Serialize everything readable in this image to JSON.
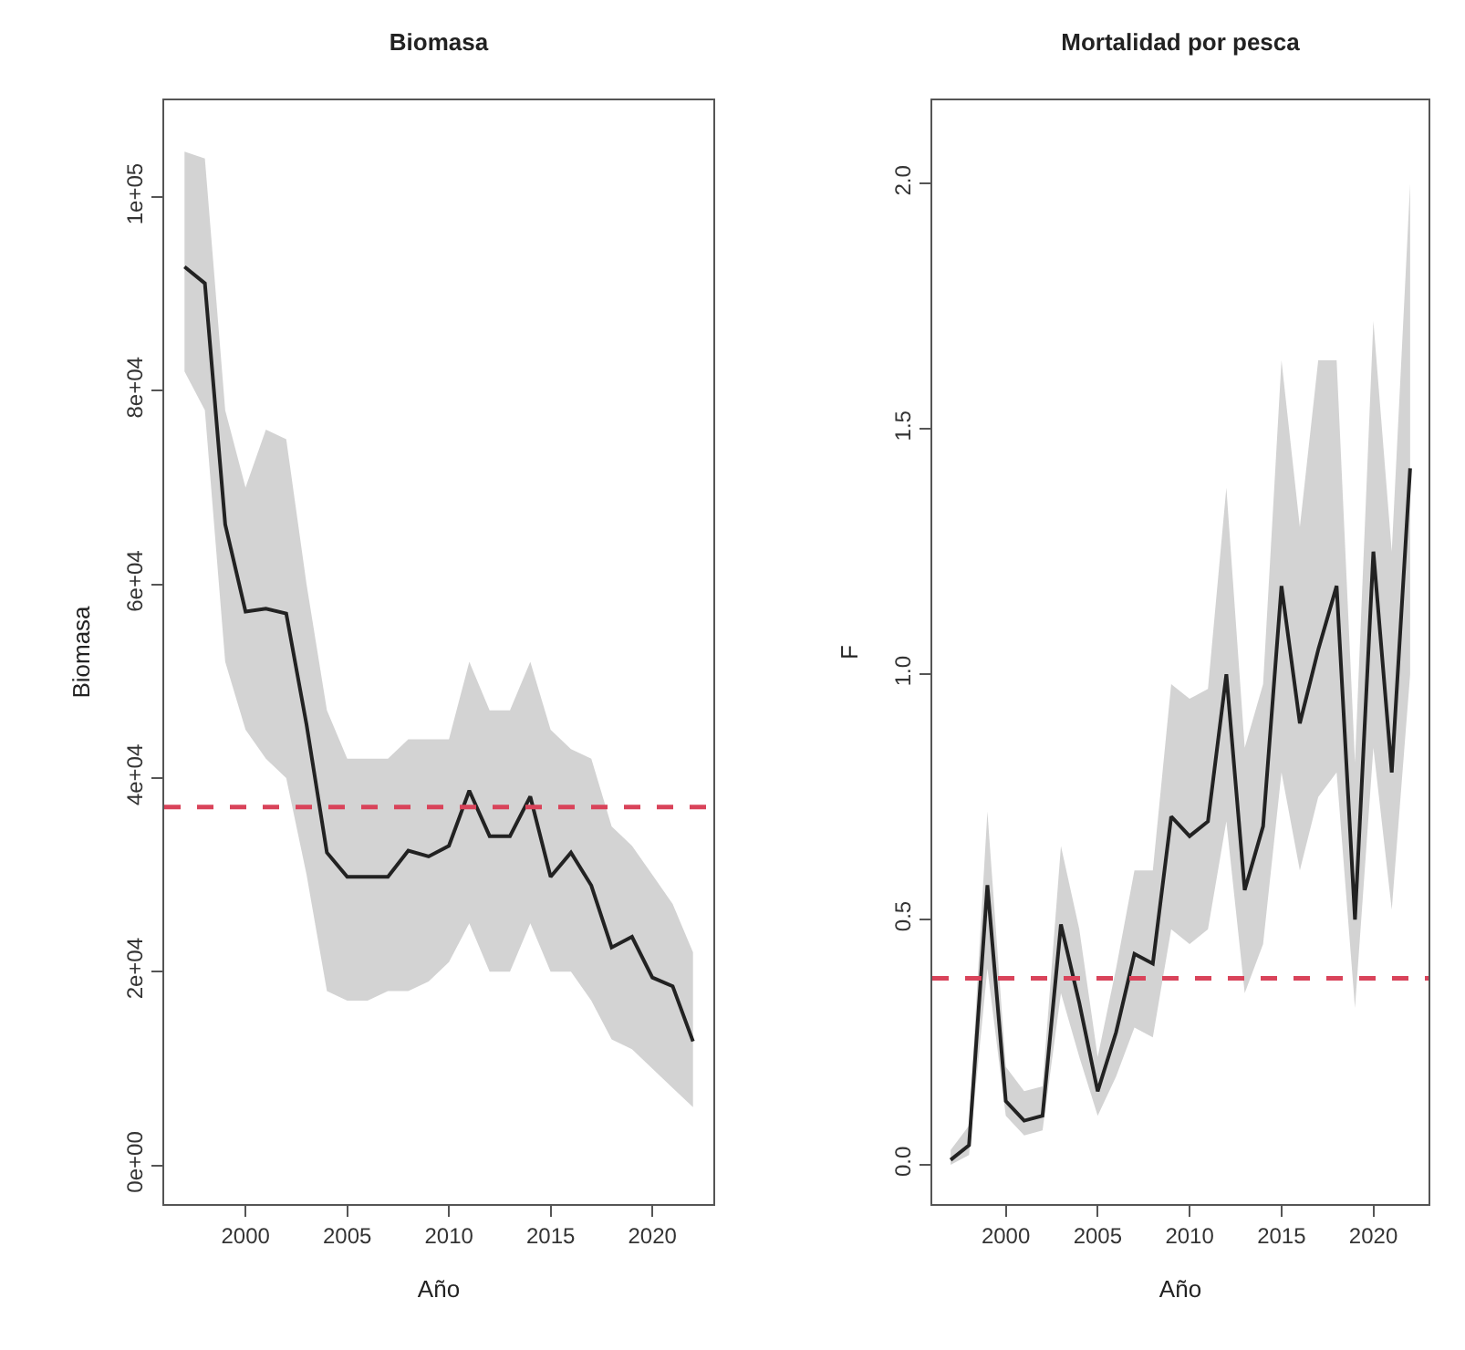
{
  "chart_data": [
    {
      "type": "line",
      "title": "Biomasa",
      "xlabel": "Año",
      "ylabel": "Biomasa",
      "x": [
        1997,
        1998,
        1999,
        2000,
        2001,
        2002,
        2003,
        2004,
        2005,
        2006,
        2007,
        2008,
        2009,
        2010,
        2011,
        2012,
        2013,
        2014,
        2015,
        2016,
        2017,
        2018,
        2019,
        2020,
        2021,
        2022
      ],
      "series": [
        {
          "color": "#222222",
          "values": [
            92800,
            91100,
            66200,
            57200,
            57500,
            57000,
            45500,
            32300,
            29800,
            29800,
            29800,
            32500,
            31900,
            33000,
            38700,
            34000,
            34000,
            38100,
            29800,
            32300,
            28900,
            22500,
            23600,
            19400,
            18500,
            12800
          ],
          "upper": [
            104700,
            104000,
            78000,
            70000,
            76000,
            75000,
            60000,
            47000,
            42000,
            42000,
            42000,
            44000,
            44000,
            44000,
            52000,
            47000,
            47000,
            52000,
            45000,
            43000,
            42000,
            35000,
            33000,
            30000,
            27000,
            22000
          ],
          "lower": [
            82000,
            78000,
            52000,
            45000,
            42000,
            40000,
            30000,
            18000,
            17000,
            17000,
            18000,
            18000,
            19000,
            21000,
            25000,
            20000,
            20000,
            25000,
            20000,
            20000,
            17000,
            13000,
            12000,
            10000,
            8000,
            6000
          ]
        }
      ],
      "ref_lines": [
        {
          "axis": "y",
          "value": 37000,
          "color": "#d9435a",
          "line_style": "dashed"
        }
      ],
      "xlim": [
        1996,
        2023
      ],
      "xticks": [
        2000,
        2005,
        2010,
        2015,
        2020
      ],
      "ylim": [
        -4000,
        110000
      ],
      "yticks": [
        {
          "value": 0,
          "label": "0e+00"
        },
        {
          "value": 20000,
          "label": "2e+04"
        },
        {
          "value": 40000,
          "label": "4e+04"
        },
        {
          "value": 60000,
          "label": "6e+04"
        },
        {
          "value": 80000,
          "label": "8e+04"
        },
        {
          "value": 100000,
          "label": "1e+05"
        }
      ],
      "grid": false,
      "line_style": "solid",
      "marker": "none"
    },
    {
      "type": "line",
      "title": "Mortalidad por pesca",
      "xlabel": "Año",
      "ylabel": "F",
      "x": [
        1997,
        1998,
        1999,
        2000,
        2001,
        2002,
        2003,
        2004,
        2005,
        2006,
        2007,
        2008,
        2009,
        2010,
        2011,
        2012,
        2013,
        2014,
        2015,
        2016,
        2017,
        2018,
        2019,
        2020,
        2021,
        2022
      ],
      "series": [
        {
          "color": "#222222",
          "values": [
            0.01,
            0.04,
            0.57,
            0.13,
            0.09,
            0.1,
            0.49,
            0.33,
            0.15,
            0.27,
            0.43,
            0.41,
            0.71,
            0.67,
            0.7,
            1.0,
            0.56,
            0.69,
            1.18,
            0.9,
            1.05,
            1.18,
            0.5,
            1.25,
            0.8,
            1.42
          ],
          "upper": [
            0.03,
            0.08,
            0.72,
            0.2,
            0.15,
            0.16,
            0.65,
            0.48,
            0.22,
            0.4,
            0.6,
            0.6,
            0.98,
            0.95,
            0.97,
            1.38,
            0.85,
            0.98,
            1.64,
            1.3,
            1.64,
            1.64,
            0.82,
            1.72,
            1.25,
            2.0
          ],
          "lower": [
            0,
            0.02,
            0.4,
            0.1,
            0.06,
            0.07,
            0.35,
            0.22,
            0.1,
            0.18,
            0.28,
            0.26,
            0.48,
            0.45,
            0.48,
            0.7,
            0.35,
            0.45,
            0.8,
            0.6,
            0.75,
            0.8,
            0.32,
            0.85,
            0.52,
            1.0
          ]
        }
      ],
      "ref_lines": [
        {
          "axis": "y",
          "value": 0.38,
          "color": "#d9435a",
          "line_style": "dashed"
        }
      ],
      "xlim": [
        1996,
        2023
      ],
      "xticks": [
        2000,
        2005,
        2010,
        2015,
        2020
      ],
      "ylim": [
        -0.08,
        2.17
      ],
      "yticks": [
        {
          "value": 0,
          "label": "0.0"
        },
        {
          "value": 0.5,
          "label": "0.5"
        },
        {
          "value": 1,
          "label": "1.0"
        },
        {
          "value": 1.5,
          "label": "1.5"
        },
        {
          "value": 2,
          "label": "2.0"
        }
      ],
      "grid": false,
      "line_style": "solid",
      "marker": "none"
    }
  ]
}
